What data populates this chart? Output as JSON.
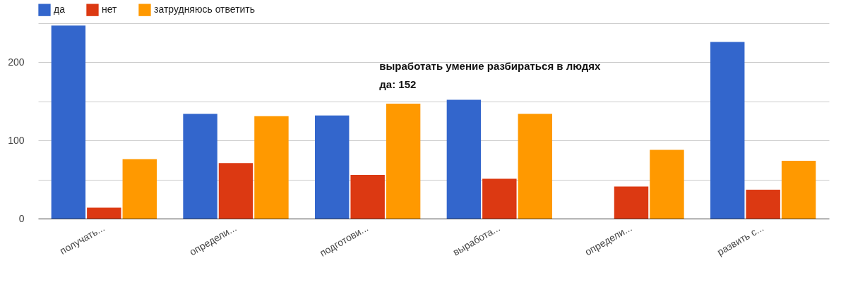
{
  "chart_data": {
    "type": "bar",
    "categories": [
      "получать...",
      "определи...",
      "подготови...",
      "выработа...",
      "определи...",
      "развить с..."
    ],
    "series": [
      {
        "name": "да",
        "color": "#3366cc",
        "values": [
          247,
          134,
          132,
          152,
          null,
          226
        ]
      },
      {
        "name": "нет",
        "color": "#dc3912",
        "values": [
          14,
          71,
          56,
          51,
          41,
          37
        ]
      },
      {
        "name": "затрудняюсь ответить",
        "color": "#ff9900",
        "values": [
          76,
          131,
          147,
          134,
          88,
          74
        ]
      }
    ],
    "ylim": [
      0,
      250
    ],
    "yticks": [
      0,
      {
        "value": 50,
        "label": null
      },
      100,
      {
        "value": 150,
        "label": null
      },
      200,
      {
        "value": 250,
        "label": null
      }
    ],
    "grid": "y",
    "legend": "top left",
    "annotations": [
      {
        "text": "выработать умение разбираться в людях\nда: 152",
        "x": "выработа...",
        "y": 152
      }
    ]
  }
}
